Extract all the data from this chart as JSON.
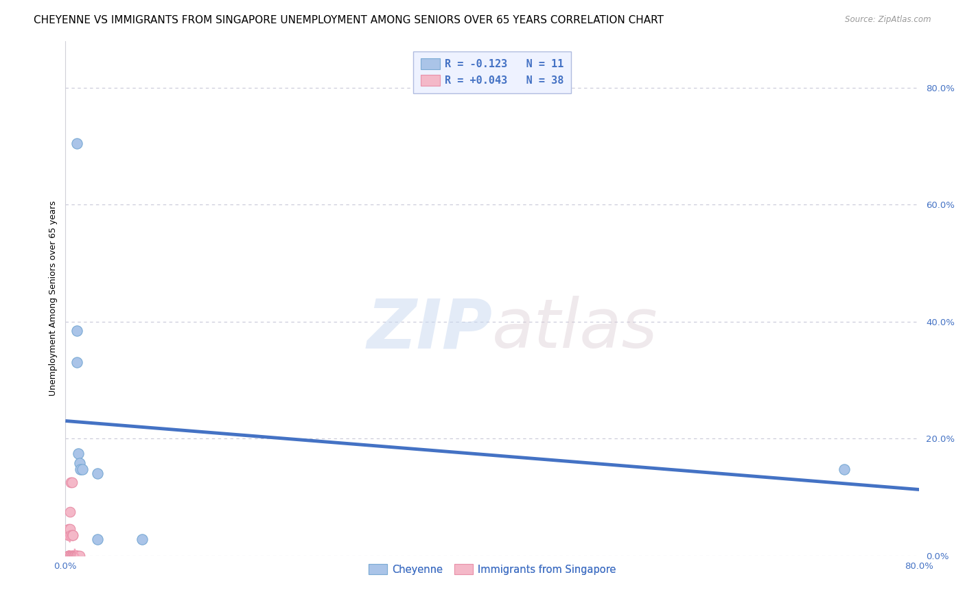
{
  "title": "CHEYENNE VS IMMIGRANTS FROM SINGAPORE UNEMPLOYMENT AMONG SENIORS OVER 65 YEARS CORRELATION CHART",
  "source": "Source: ZipAtlas.com",
  "ylabel": "Unemployment Among Seniors over 65 years",
  "xlim": [
    0.0,
    0.8
  ],
  "ylim": [
    0.0,
    0.88
  ],
  "xticks": [
    0.0,
    0.1,
    0.2,
    0.3,
    0.4,
    0.5,
    0.6,
    0.7,
    0.8
  ],
  "yticks": [
    0.0,
    0.2,
    0.4,
    0.6,
    0.8
  ],
  "grid_color": "#c8c8d8",
  "bg_color": "#ffffff",
  "cheyenne_color": "#aac4e8",
  "cheyenne_edge_color": "#7aaad4",
  "singapore_color": "#f4b8c8",
  "singapore_edge_color": "#e890a8",
  "cheyenne_line_color": "#4472c4",
  "singapore_line_color": "#f4a0b8",
  "R_cheyenne": -0.123,
  "N_cheyenne": 11,
  "R_singapore": 0.043,
  "N_singapore": 38,
  "cheyenne_x": [
    0.011,
    0.011,
    0.011,
    0.012,
    0.013,
    0.014,
    0.016,
    0.03,
    0.03,
    0.072,
    0.73
  ],
  "cheyenne_y": [
    0.705,
    0.385,
    0.33,
    0.175,
    0.158,
    0.148,
    0.148,
    0.14,
    0.028,
    0.028,
    0.148
  ],
  "singapore_x": [
    0.003,
    0.003,
    0.003,
    0.003,
    0.003,
    0.003,
    0.003,
    0.003,
    0.003,
    0.003,
    0.003,
    0.004,
    0.004,
    0.004,
    0.005,
    0.005,
    0.005,
    0.006,
    0.006,
    0.006,
    0.006,
    0.007,
    0.007,
    0.007,
    0.007,
    0.008,
    0.008,
    0.008,
    0.009,
    0.009,
    0.009,
    0.009,
    0.01,
    0.01,
    0.011,
    0.011,
    0.012,
    0.013
  ],
  "singapore_y": [
    0.0,
    0.0,
    0.0,
    0.0,
    0.0,
    0.0,
    0.0,
    0.035,
    0.035,
    0.035,
    0.045,
    0.0,
    0.045,
    0.075,
    0.0,
    0.035,
    0.125,
    0.0,
    0.0,
    0.035,
    0.125,
    0.0,
    0.0,
    0.035,
    0.035,
    0.0,
    0.0,
    0.0,
    0.0,
    0.0,
    0.0,
    0.0,
    0.0,
    0.0,
    0.0,
    0.0,
    0.0,
    0.0
  ],
  "watermark_zip": "ZIP",
  "watermark_atlas": "atlas",
  "legend_box_color": "#eef2ff",
  "legend_border_color": "#b0bce0",
  "legend_text_color": "#4472c4",
  "bottom_legend_text_color": "#4472c4",
  "title_fontsize": 11,
  "axis_label_fontsize": 9,
  "tick_fontsize": 9.5,
  "marker_size": 110
}
